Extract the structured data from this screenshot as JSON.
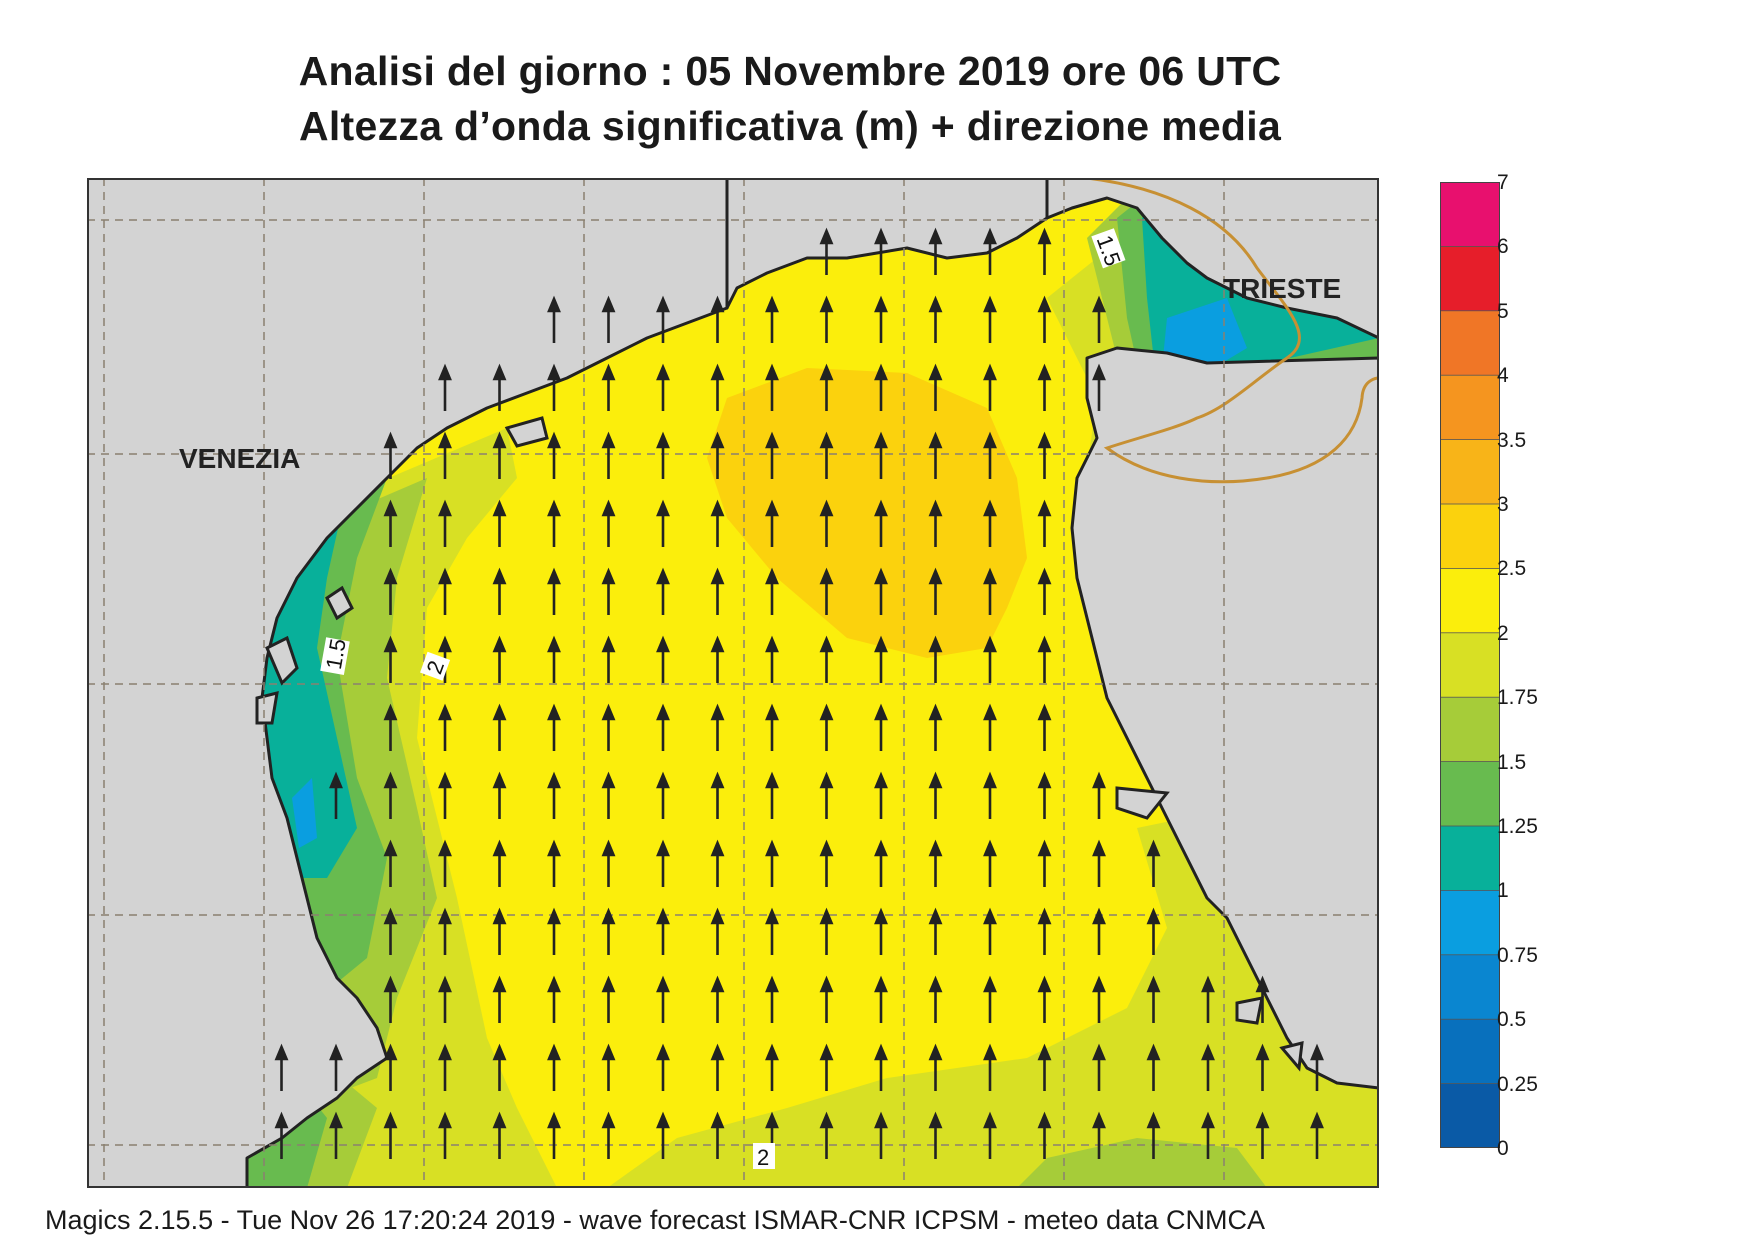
{
  "title_line1": "Analisi del giorno :  05 Novembre  2019   ore 06 UTC",
  "title_line2": "Altezza d’onda significativa (m) + direzione media",
  "footer": "Magics 2.15.5 - Tue Nov 26 17:20:24 2019 - wave forecast  ISMAR-CNR  ICPSM - meteo data   CNMCA",
  "cities": [
    "VENEZIA",
    "TRIESTE"
  ],
  "contour_labels": [
    "1.5",
    "2",
    "1.5",
    "2"
  ],
  "legend": {
    "ticks": [
      "7",
      "6",
      "5",
      "4",
      "3.5",
      "3",
      "2.5",
      "2",
      "1.75",
      "1.5",
      "1.25",
      "1",
      "0.75",
      "0.5",
      "0.25",
      "0"
    ],
    "colors": [
      "#e8106e",
      "#e61e2a",
      "#f07626",
      "#f5951f",
      "#f8b418",
      "#fbd20d",
      "#fbee0c",
      "#d8e024",
      "#a6cc39",
      "#68bb4f",
      "#08b09a",
      "#0a9ee0",
      "#0a86d0",
      "#0870bd",
      "#0a5aa6"
    ]
  },
  "colors": {
    "land": "#d3d3d3",
    "coast": "#222222",
    "border": "#c79033",
    "grid": "#8a8070"
  },
  "wave_direction": "north"
}
